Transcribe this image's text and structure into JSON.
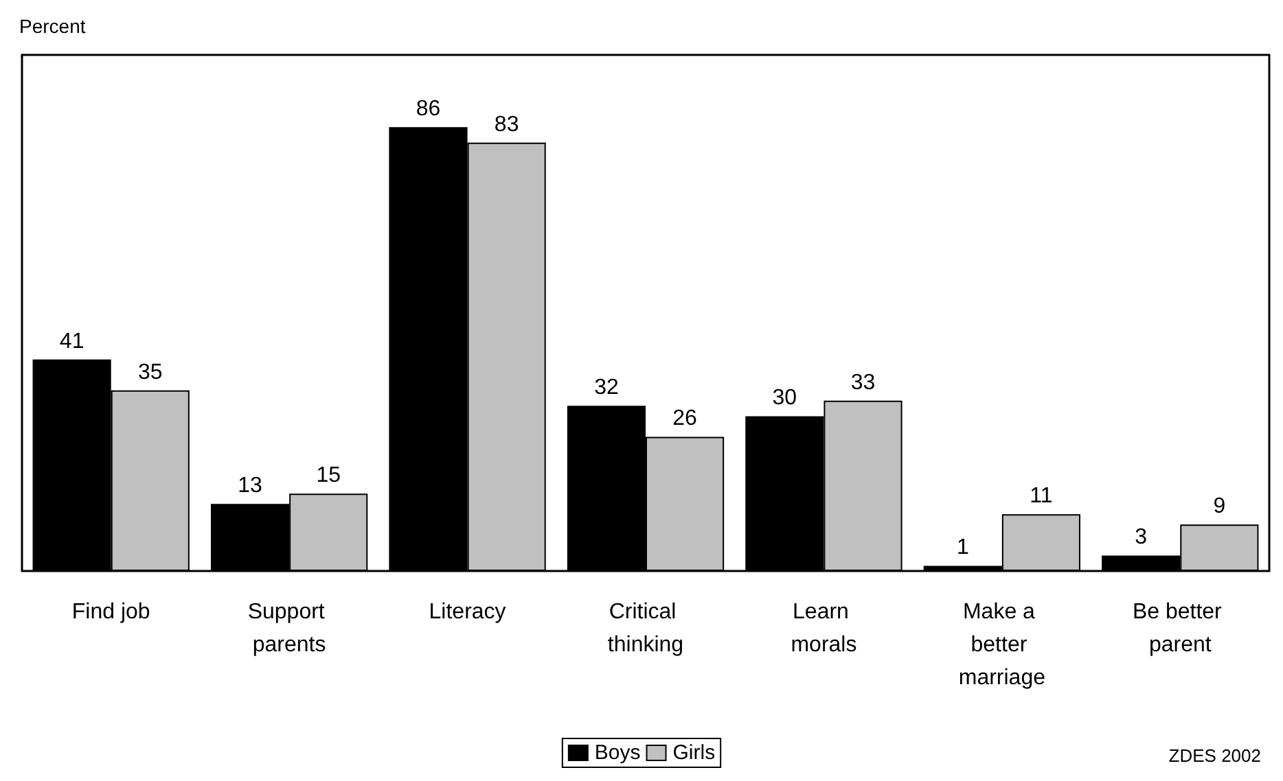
{
  "chart_data": {
    "type": "bar",
    "ylabel": "Percent",
    "categories": [
      "Find job",
      "Support parents",
      "Literacy",
      "Critical thinking",
      "Learn morals",
      "Make a better marriage",
      "Be better parent"
    ],
    "series": [
      {
        "name": "Boys",
        "color": "#000000",
        "values": [
          41,
          13,
          86,
          32,
          30,
          1,
          3
        ]
      },
      {
        "name": "Girls",
        "color": "#c0c0c0",
        "values": [
          35,
          15,
          83,
          26,
          33,
          11,
          9
        ]
      }
    ],
    "data_labels": true,
    "legend": "bottom",
    "grid": false,
    "tick_labels": "x",
    "annotations": [
      "ZDES 2002"
    ]
  }
}
